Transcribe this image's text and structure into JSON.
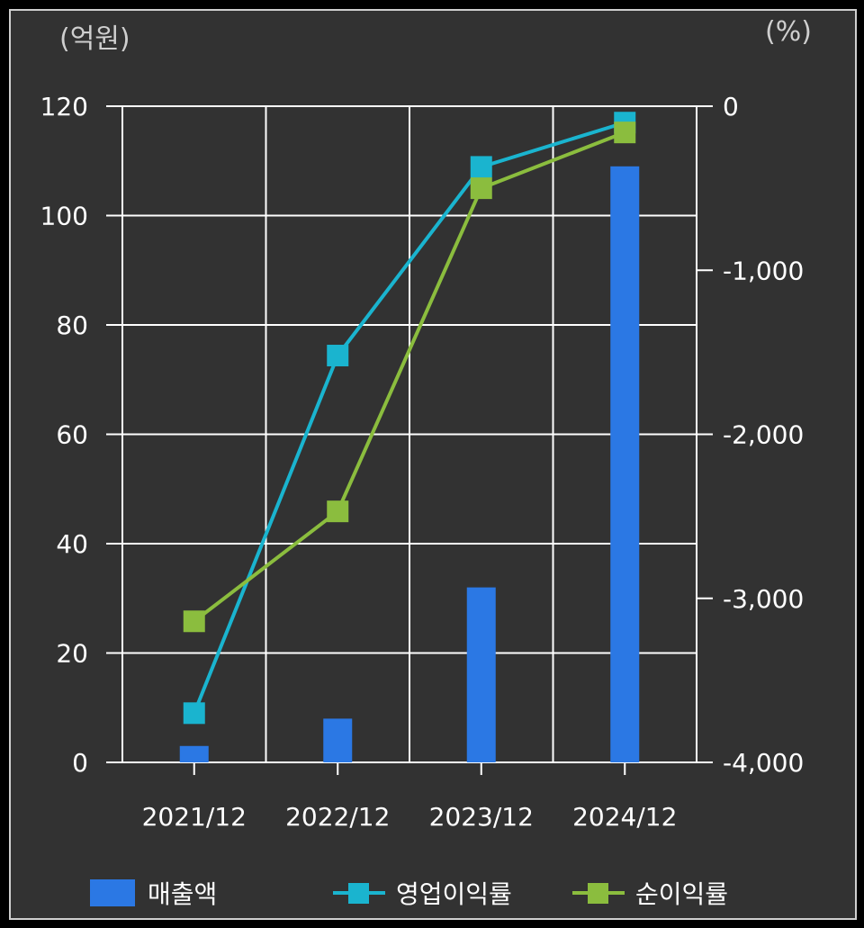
{
  "chart_data": {
    "type": "bar",
    "categories": [
      "2021/12",
      "2022/12",
      "2023/12",
      "2024/12"
    ],
    "left_axis": {
      "unit": "(억원)",
      "ylim": [
        0,
        120
      ],
      "ticks": [
        0,
        20,
        40,
        60,
        80,
        100,
        120
      ]
    },
    "right_axis": {
      "unit": "(%)",
      "ylim": [
        -4000,
        0
      ],
      "ticks": [
        0,
        -1000,
        -2000,
        -3000,
        -4000
      ],
      "tick_labels": [
        "0",
        "-1,000",
        "-2,000",
        "-3,000",
        "-4,000"
      ]
    },
    "series": [
      {
        "name": "매출액",
        "kind": "bar",
        "axis": "left",
        "color": "#2b78e4",
        "values": [
          3,
          8,
          32,
          109
        ]
      },
      {
        "name": "영업이익률",
        "kind": "line",
        "axis": "right",
        "color": "#1ab4cf",
        "values": [
          -3700,
          -1520,
          -370,
          -100
        ]
      },
      {
        "name": "순이익률",
        "kind": "line",
        "axis": "right",
        "color": "#8bbd3e",
        "values": [
          -3140,
          -2470,
          -500,
          -160
        ]
      }
    ],
    "grid": true,
    "legend_position": "bottom"
  }
}
